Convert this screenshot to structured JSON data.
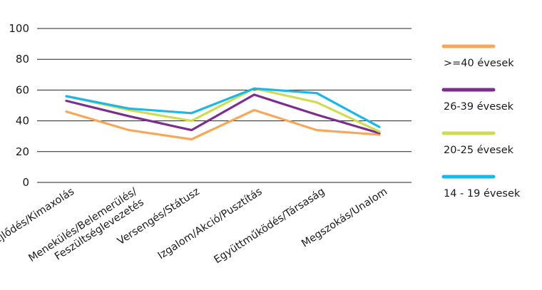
{
  "chart_data": {
    "type": "line",
    "categories": [
      [
        "Fejlődés/Kimaxolás"
      ],
      [
        "Menekülés/Belemerülés/",
        "Feszültséglevezetés"
      ],
      [
        "Versengés/Státusz"
      ],
      [
        "Izgalom/Akció/Pusztítás"
      ],
      [
        "Együttműködés/Társaság"
      ],
      [
        "Megszokás/Unalom"
      ]
    ],
    "ylim": [
      0,
      100
    ],
    "yticks": [
      0,
      20,
      40,
      60,
      80,
      100
    ],
    "grid": true,
    "legend_position": "right",
    "series": [
      {
        "name": ">=40 évesek",
        "color": "#F5A85A",
        "values": [
          46,
          34,
          28,
          47,
          34,
          31
        ]
      },
      {
        "name": "26-39 évesek",
        "color": "#7B2E8C",
        "values": [
          53,
          43,
          34,
          57,
          44,
          32
        ]
      },
      {
        "name": "20-25 évesek",
        "color": "#CFDC52",
        "values": [
          56,
          47,
          40,
          61,
          52,
          33
        ]
      },
      {
        "name": "14 - 19 évesek",
        "color": "#1BB7E8",
        "values": [
          56,
          48,
          45,
          61,
          58,
          36
        ]
      }
    ]
  }
}
